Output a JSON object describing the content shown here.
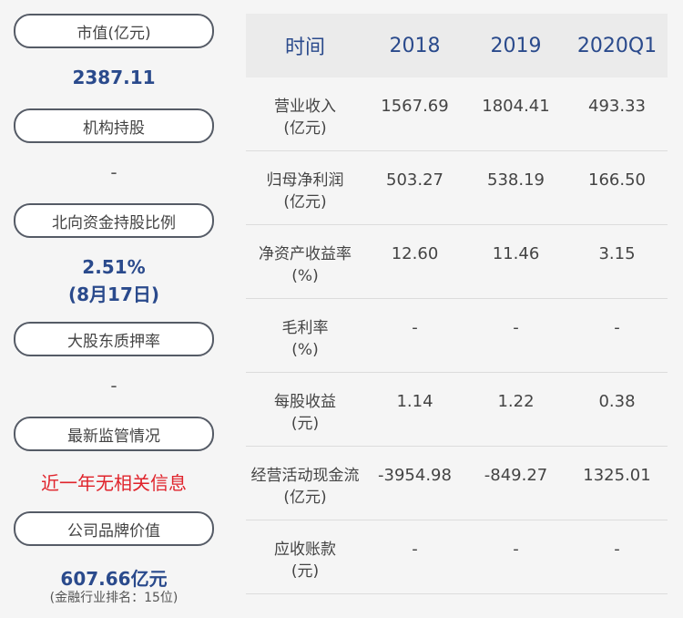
{
  "left": {
    "market_cap": {
      "label": "市值(亿元)",
      "value": "2387.11"
    },
    "institution": {
      "label": "机构持股",
      "value": "-"
    },
    "northbound": {
      "label": "北向资金持股比例",
      "value": "2.51%",
      "date": "(8月17日)"
    },
    "pledge": {
      "label": "大股东质押率",
      "value": "-"
    },
    "regulation": {
      "label": "最新监管情况",
      "value": "近一年无相关信息"
    },
    "brand": {
      "label": "公司品牌价值",
      "value": "607.66亿元",
      "rank": "(金融行业排名：15位)"
    }
  },
  "table": {
    "headers": [
      "时间",
      "2018",
      "2019",
      "2020Q1"
    ],
    "rows": [
      {
        "label": "营业收入",
        "unit": "(亿元)",
        "v": [
          "1567.69",
          "1804.41",
          "493.33"
        ]
      },
      {
        "label": "归母净利润",
        "unit": "(亿元)",
        "v": [
          "503.27",
          "538.19",
          "166.50"
        ]
      },
      {
        "label": "净资产收益率",
        "unit": "(%)",
        "v": [
          "12.60",
          "11.46",
          "3.15"
        ]
      },
      {
        "label": "毛利率",
        "unit": "(%)",
        "v": [
          "-",
          "-",
          "-"
        ]
      },
      {
        "label": "每股收益",
        "unit": "(元)",
        "v": [
          "1.14",
          "1.22",
          "0.38"
        ]
      },
      {
        "label": "经营活动现金流",
        "unit": "(亿元)",
        "v": [
          "-3954.98",
          "-849.27",
          "1325.01"
        ]
      },
      {
        "label": "应收账款",
        "unit": "(元)",
        "v": [
          "-",
          "-",
          "-"
        ]
      }
    ]
  }
}
